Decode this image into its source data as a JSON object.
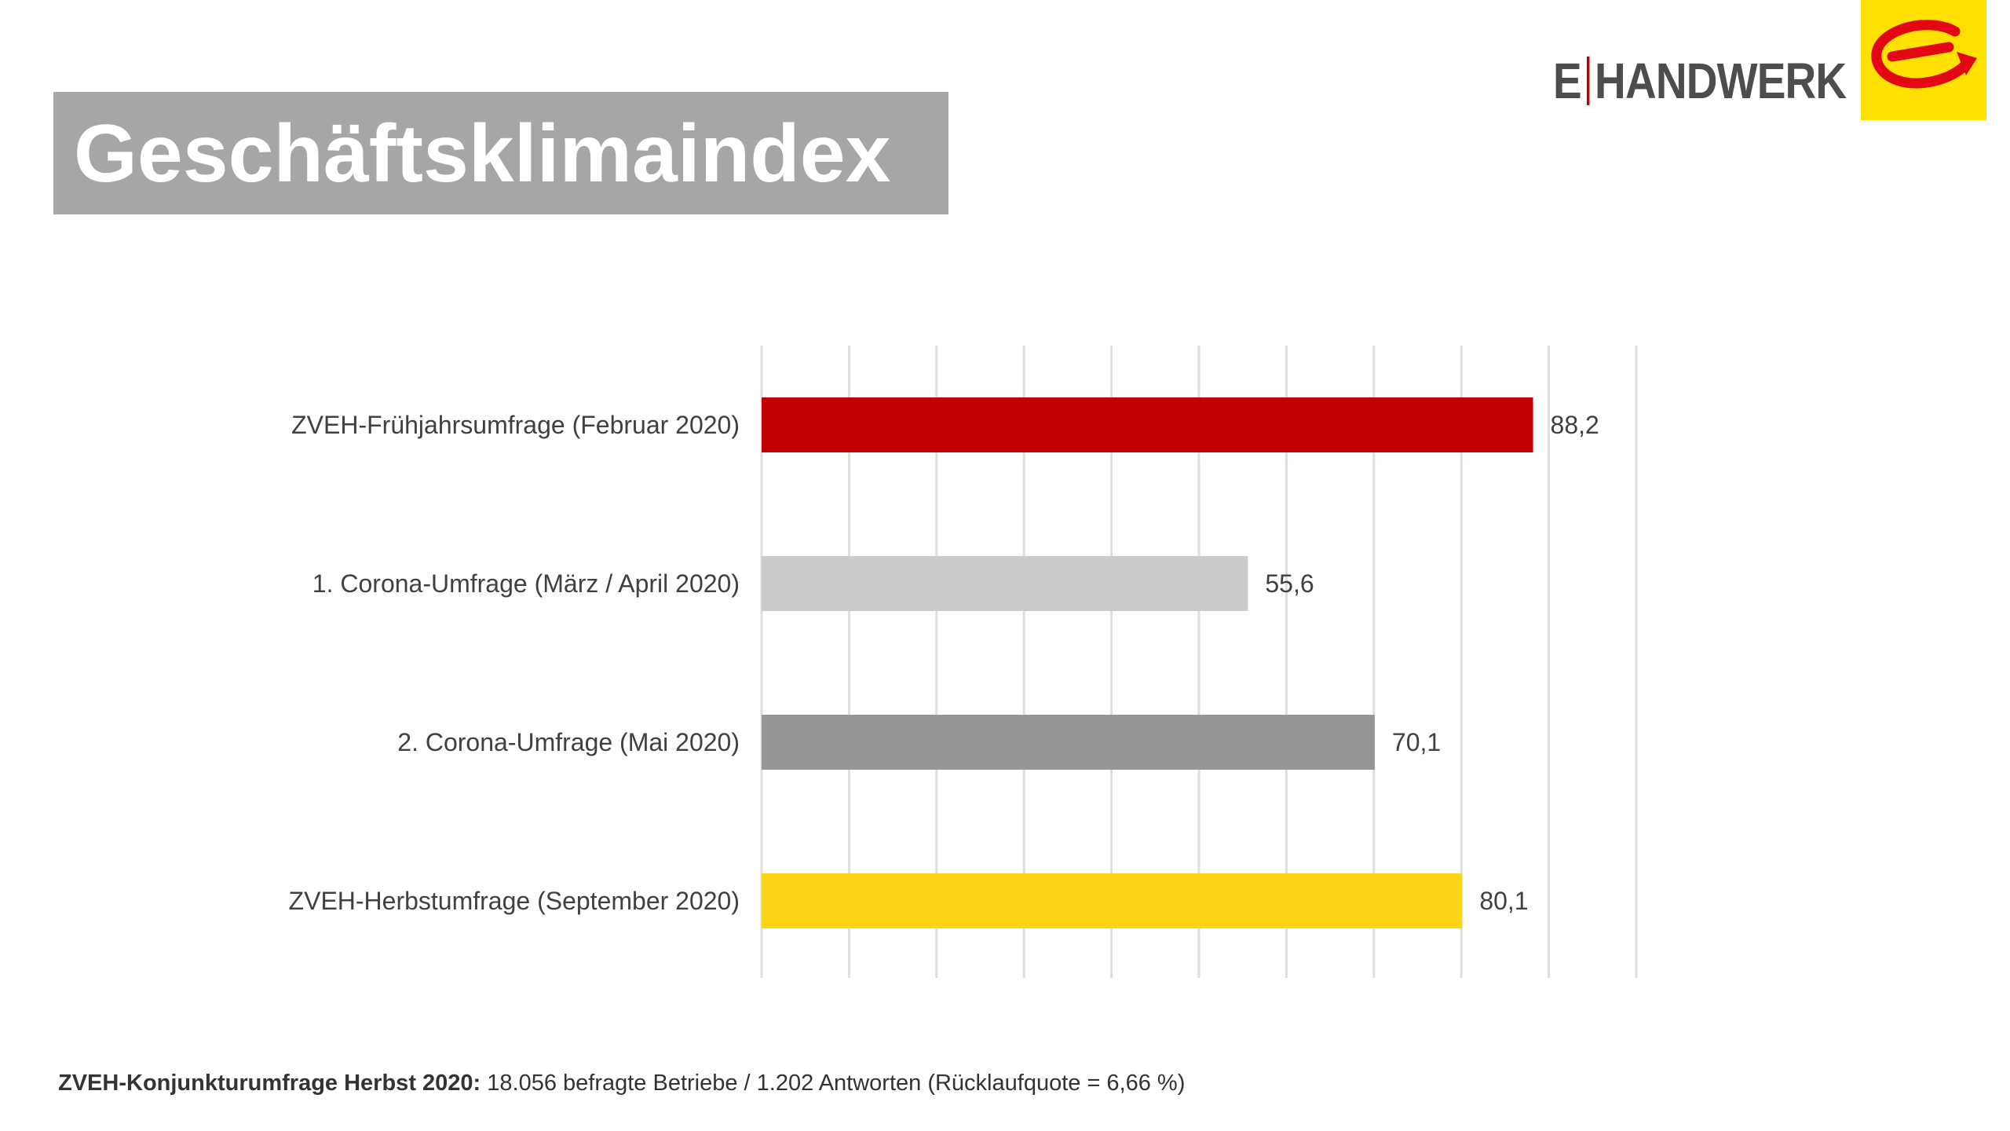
{
  "header": {
    "title": "Geschäftsklimaindex"
  },
  "logo": {
    "letter": "E",
    "word": "HANDWERK",
    "colors": {
      "text": "#4d4d4d",
      "separator": "#c00000",
      "square": "#ffe000",
      "mark": "#e30613"
    },
    "icon": "e-handwerk-logo-icon"
  },
  "chart_data": {
    "type": "bar",
    "orientation": "horizontal",
    "title": "",
    "xlabel": "",
    "ylabel": "",
    "categories": [
      "ZVEH-Frühjahrsumfrage (Februar 2020)",
      "1. Corona-Umfrage (März / April 2020)",
      "2. Corona-Umfrage (Mai 2020)",
      "ZVEH-Herbstumfrage (September 2020)"
    ],
    "values": [
      88.2,
      55.6,
      70.1,
      80.1
    ],
    "data_labels": [
      "88,2",
      "55,6",
      "70,1",
      "80,1"
    ],
    "colors": [
      "#c00000",
      "#cbcbcb",
      "#969696",
      "#fcd616"
    ],
    "xlim": [
      0,
      100
    ],
    "gridlines": true,
    "grid_step": 10,
    "legend": "none"
  },
  "footnote": {
    "bold": "ZVEH-Konjunkturumfrage Herbst 2020:",
    "text": " 18.056 befragte Betriebe / 1.202 Antworten (Rücklaufquote = 6,66 %)"
  }
}
